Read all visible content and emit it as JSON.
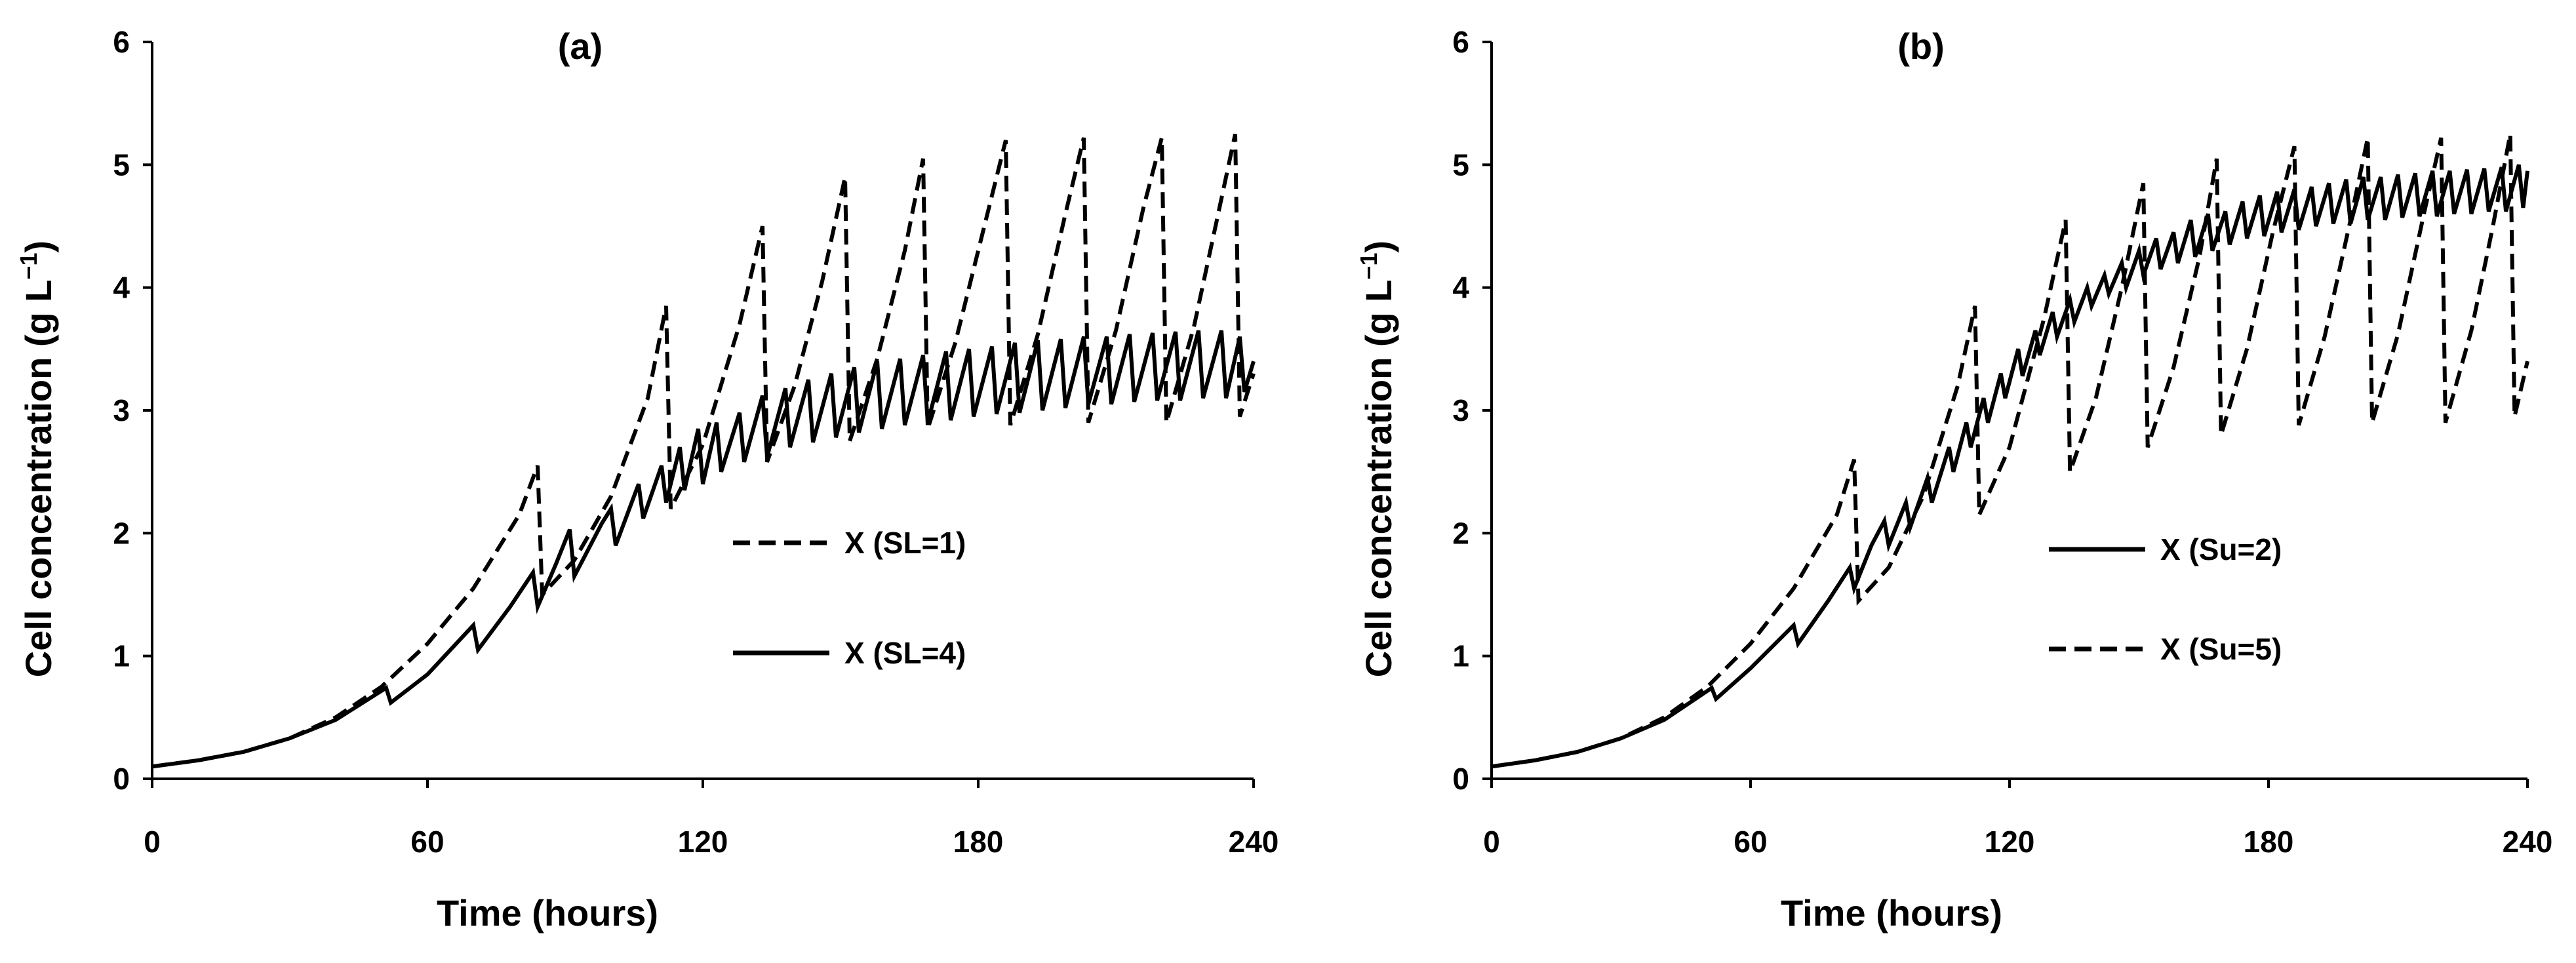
{
  "figure_labels": {
    "panel_a": "(a)",
    "panel_b": "(b)"
  },
  "chart_data": [
    {
      "type": "line",
      "panel": "(a)",
      "title": "(a)",
      "xlabel": "Time (hours)",
      "ylabel": "Cell concentration (g L",
      "ylabel_sup": "−1",
      "ylabel_close": ")",
      "xlim": [
        0,
        240
      ],
      "ylim": [
        0,
        6
      ],
      "xticks": [
        0,
        60,
        120,
        180,
        240
      ],
      "yticks": [
        0,
        1,
        2,
        3,
        4,
        5,
        6
      ],
      "xtick_labels": [
        "0",
        "60",
        "120",
        "180",
        "240"
      ],
      "ytick_labels": [
        "0",
        "1",
        "2",
        "3",
        "4",
        "5",
        "6"
      ],
      "grid": false,
      "legend_position": "center-right",
      "series": [
        {
          "name": "X (SL=1)",
          "style": "dashed",
          "color": "#000000",
          "points": [
            [
              0,
              0.1
            ],
            [
              10,
              0.15
            ],
            [
              20,
              0.22
            ],
            [
              30,
              0.33
            ],
            [
              40,
              0.5
            ],
            [
              50,
              0.75
            ],
            [
              60,
              1.1
            ],
            [
              70,
              1.55
            ],
            [
              80,
              2.15
            ],
            [
              84,
              2.55
            ],
            [
              85,
              1.5
            ],
            [
              92,
              1.78
            ],
            [
              100,
              2.3
            ],
            [
              108,
              3.1
            ],
            [
              112,
              3.85
            ],
            [
              113,
              2.2
            ],
            [
              120,
              2.72
            ],
            [
              128,
              3.7
            ],
            [
              133,
              4.5
            ],
            [
              134,
              2.58
            ],
            [
              140,
              3.2
            ],
            [
              146,
              4.05
            ],
            [
              151,
              4.9
            ],
            [
              152,
              2.75
            ],
            [
              158,
              3.42
            ],
            [
              164,
              4.3
            ],
            [
              168,
              5.05
            ],
            [
              169,
              2.85
            ],
            [
              175,
              3.55
            ],
            [
              181,
              4.45
            ],
            [
              186,
              5.2
            ],
            [
              187,
              2.88
            ],
            [
              193,
              3.62
            ],
            [
              199,
              4.6
            ],
            [
              203,
              5.22
            ],
            [
              204,
              2.9
            ],
            [
              210,
              3.65
            ],
            [
              216,
              4.65
            ],
            [
              220,
              5.22
            ],
            [
              221,
              2.9
            ],
            [
              227,
              3.68
            ],
            [
              232,
              4.55
            ],
            [
              236,
              5.25
            ],
            [
              237,
              2.95
            ],
            [
              240,
              3.3
            ]
          ]
        },
        {
          "name": "X (SL=4)",
          "style": "solid",
          "color": "#000000",
          "points": [
            [
              0,
              0.1
            ],
            [
              10,
              0.15
            ],
            [
              20,
              0.22
            ],
            [
              30,
              0.33
            ],
            [
              40,
              0.48
            ],
            [
              51,
              0.74
            ],
            [
              52,
              0.62
            ],
            [
              60,
              0.85
            ],
            [
              70,
              1.25
            ],
            [
              71,
              1.05
            ],
            [
              78,
              1.4
            ],
            [
              83,
              1.68
            ],
            [
              84,
              1.4
            ],
            [
              88,
              1.75
            ],
            [
              91,
              2.03
            ],
            [
              92,
              1.65
            ],
            [
              98,
              2.08
            ],
            [
              100,
              2.2
            ],
            [
              101,
              1.9
            ],
            [
              106,
              2.4
            ],
            [
              107,
              2.12
            ],
            [
              111,
              2.55
            ],
            [
              112,
              2.25
            ],
            [
              115,
              2.7
            ],
            [
              116,
              2.35
            ],
            [
              119,
              2.85
            ],
            [
              120,
              2.4
            ],
            [
              123,
              2.9
            ],
            [
              124,
              2.5
            ],
            [
              128,
              2.98
            ],
            [
              129,
              2.58
            ],
            [
              133,
              3.12
            ],
            [
              134,
              2.62
            ],
            [
              138,
              3.18
            ],
            [
              139,
              2.7
            ],
            [
              143,
              3.25
            ],
            [
              144,
              2.74
            ],
            [
              148,
              3.3
            ],
            [
              149,
              2.78
            ],
            [
              153,
              3.35
            ],
            [
              154,
              2.82
            ],
            [
              158,
              3.4
            ],
            [
              159,
              2.85
            ],
            [
              163,
              3.42
            ],
            [
              164,
              2.88
            ],
            [
              168,
              3.45
            ],
            [
              169,
              2.9
            ],
            [
              173,
              3.48
            ],
            [
              174,
              2.92
            ],
            [
              178,
              3.5
            ],
            [
              179,
              2.95
            ],
            [
              183,
              3.52
            ],
            [
              184,
              2.97
            ],
            [
              188,
              3.55
            ],
            [
              189,
              2.98
            ],
            [
              193,
              3.57
            ],
            [
              194,
              3.0
            ],
            [
              198,
              3.58
            ],
            [
              199,
              3.02
            ],
            [
              203,
              3.6
            ],
            [
              204,
              3.05
            ],
            [
              208,
              3.6
            ],
            [
              209,
              3.05
            ],
            [
              213,
              3.62
            ],
            [
              214,
              3.07
            ],
            [
              218,
              3.63
            ],
            [
              219,
              3.08
            ],
            [
              223,
              3.64
            ],
            [
              224,
              3.08
            ],
            [
              228,
              3.65
            ],
            [
              229,
              3.1
            ],
            [
              233,
              3.65
            ],
            [
              234,
              3.1
            ],
            [
              237,
              3.6
            ],
            [
              238,
              3.15
            ],
            [
              240,
              3.4
            ]
          ]
        }
      ]
    },
    {
      "type": "line",
      "panel": "(b)",
      "title": "(b)",
      "xlabel": "Time (hours)",
      "ylabel": "Cell concentration (g L",
      "ylabel_sup": "−1",
      "ylabel_close": ")",
      "xlim": [
        0,
        240
      ],
      "ylim": [
        0,
        6
      ],
      "xticks": [
        0,
        60,
        120,
        180,
        240
      ],
      "yticks": [
        0,
        1,
        2,
        3,
        4,
        5,
        6
      ],
      "xtick_labels": [
        "0",
        "60",
        "120",
        "180",
        "240"
      ],
      "ytick_labels": [
        "0",
        "1",
        "2",
        "3",
        "4",
        "5",
        "6"
      ],
      "grid": false,
      "legend_position": "center-right",
      "series": [
        {
          "name": "X (Su=2)",
          "style": "solid",
          "color": "#000000",
          "points": [
            [
              0,
              0.1
            ],
            [
              10,
              0.15
            ],
            [
              20,
              0.22
            ],
            [
              30,
              0.33
            ],
            [
              40,
              0.48
            ],
            [
              51,
              0.74
            ],
            [
              52,
              0.65
            ],
            [
              60,
              0.9
            ],
            [
              70,
              1.25
            ],
            [
              71,
              1.1
            ],
            [
              78,
              1.45
            ],
            [
              83,
              1.72
            ],
            [
              84,
              1.55
            ],
            [
              88,
              1.9
            ],
            [
              91,
              2.1
            ],
            [
              92,
              1.9
            ],
            [
              96,
              2.25
            ],
            [
              97,
              2.05
            ],
            [
              101,
              2.45
            ],
            [
              102,
              2.25
            ],
            [
              106,
              2.7
            ],
            [
              107,
              2.5
            ],
            [
              110,
              2.9
            ],
            [
              111,
              2.7
            ],
            [
              114,
              3.1
            ],
            [
              115,
              2.9
            ],
            [
              118,
              3.3
            ],
            [
              119,
              3.1
            ],
            [
              122,
              3.5
            ],
            [
              123,
              3.28
            ],
            [
              126,
              3.65
            ],
            [
              127,
              3.45
            ],
            [
              130,
              3.8
            ],
            [
              131,
              3.6
            ],
            [
              134,
              3.9
            ],
            [
              135,
              3.72
            ],
            [
              138,
              4.0
            ],
            [
              139,
              3.85
            ],
            [
              142,
              4.1
            ],
            [
              143,
              3.95
            ],
            [
              146,
              4.2
            ],
            [
              147,
              4.0
            ],
            [
              150,
              4.3
            ],
            [
              151,
              4.1
            ],
            [
              154,
              4.4
            ],
            [
              155,
              4.15
            ],
            [
              158,
              4.45
            ],
            [
              159,
              4.2
            ],
            [
              162,
              4.55
            ],
            [
              163,
              4.25
            ],
            [
              166,
              4.6
            ],
            [
              167,
              4.3
            ],
            [
              170,
              4.62
            ],
            [
              171,
              4.35
            ],
            [
              174,
              4.7
            ],
            [
              175,
              4.4
            ],
            [
              178,
              4.75
            ],
            [
              179,
              4.42
            ],
            [
              182,
              4.78
            ],
            [
              183,
              4.45
            ],
            [
              186,
              4.8
            ],
            [
              187,
              4.47
            ],
            [
              190,
              4.82
            ],
            [
              191,
              4.5
            ],
            [
              194,
              4.85
            ],
            [
              195,
              4.52
            ],
            [
              198,
              4.88
            ],
            [
              199,
              4.52
            ],
            [
              202,
              4.9
            ],
            [
              203,
              4.55
            ],
            [
              206,
              4.9
            ],
            [
              207,
              4.55
            ],
            [
              210,
              4.92
            ],
            [
              211,
              4.57
            ],
            [
              214,
              4.93
            ],
            [
              215,
              4.58
            ],
            [
              218,
              4.95
            ],
            [
              219,
              4.58
            ],
            [
              222,
              4.95
            ],
            [
              223,
              4.6
            ],
            [
              226,
              4.96
            ],
            [
              227,
              4.6
            ],
            [
              230,
              4.97
            ],
            [
              231,
              4.62
            ],
            [
              234,
              4.98
            ],
            [
              235,
              4.62
            ],
            [
              238,
              5.0
            ],
            [
              239,
              4.65
            ],
            [
              240,
              4.95
            ]
          ]
        },
        {
          "name": "X (Su=5)",
          "style": "dashed",
          "color": "#000000",
          "points": [
            [
              0,
              0.1
            ],
            [
              10,
              0.15
            ],
            [
              20,
              0.22
            ],
            [
              30,
              0.33
            ],
            [
              40,
              0.5
            ],
            [
              50,
              0.75
            ],
            [
              60,
              1.1
            ],
            [
              70,
              1.55
            ],
            [
              80,
              2.15
            ],
            [
              84,
              2.6
            ],
            [
              85,
              1.45
            ],
            [
              92,
              1.72
            ],
            [
              100,
              2.3
            ],
            [
              108,
              3.2
            ],
            [
              112,
              3.85
            ],
            [
              113,
              2.15
            ],
            [
              120,
              2.7
            ],
            [
              128,
              3.75
            ],
            [
              133,
              4.55
            ],
            [
              134,
              2.5
            ],
            [
              140,
              3.1
            ],
            [
              146,
              4.0
            ],
            [
              151,
              4.85
            ],
            [
              152,
              2.7
            ],
            [
              158,
              3.35
            ],
            [
              164,
              4.25
            ],
            [
              168,
              5.05
            ],
            [
              169,
              2.8
            ],
            [
              175,
              3.5
            ],
            [
              181,
              4.45
            ],
            [
              186,
              5.15
            ],
            [
              187,
              2.88
            ],
            [
              193,
              3.6
            ],
            [
              199,
              4.55
            ],
            [
              203,
              5.22
            ],
            [
              204,
              2.9
            ],
            [
              210,
              3.62
            ],
            [
              216,
              4.6
            ],
            [
              220,
              5.22
            ],
            [
              221,
              2.9
            ],
            [
              227,
              3.65
            ],
            [
              232,
              4.5
            ],
            [
              236,
              5.25
            ],
            [
              237,
              2.95
            ],
            [
              240,
              3.4
            ]
          ]
        }
      ]
    }
  ]
}
